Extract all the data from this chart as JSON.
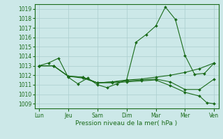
{
  "title": "Pression niveau de la mer( hPa )",
  "bg_color": "#cce8e8",
  "grid_color": "#aacece",
  "line_color": "#1a6b1a",
  "marker_color": "#1a6b1a",
  "ylim": [
    1008.5,
    1019.5
  ],
  "yticks": [
    1009,
    1010,
    1011,
    1012,
    1013,
    1014,
    1015,
    1016,
    1017,
    1018,
    1019
  ],
  "xlabels": [
    "Lun",
    "Jeu",
    "Sam",
    "Dim",
    "Mar",
    "Mer",
    "Ven"
  ],
  "xtick_pos": [
    0,
    1,
    2,
    3,
    4,
    5,
    6
  ],
  "xlim": [
    -0.15,
    6.15
  ],
  "lines": [
    {
      "x": [
        0.0,
        0.33,
        0.67,
        1.0,
        1.33,
        1.67,
        2.0,
        2.33,
        2.67,
        3.0,
        3.33,
        3.67,
        4.0,
        4.33,
        4.67,
        5.0,
        5.33,
        5.67,
        6.0
      ],
      "y": [
        1013.0,
        1013.3,
        1013.8,
        1011.8,
        1011.1,
        1011.7,
        1011.0,
        1010.7,
        1011.1,
        1011.5,
        1015.5,
        1016.3,
        1017.2,
        1019.2,
        1017.9,
        1014.1,
        1012.1,
        1012.2,
        1013.3
      ]
    },
    {
      "x": [
        0.0,
        0.5,
        1.0,
        1.5,
        2.0,
        2.5,
        3.0,
        3.5,
        4.0,
        4.5,
        5.0,
        5.5,
        6.0
      ],
      "y": [
        1013.0,
        1013.0,
        1011.9,
        1011.7,
        1011.2,
        1011.3,
        1011.5,
        1011.6,
        1011.8,
        1012.0,
        1012.3,
        1012.7,
        1013.3
      ]
    },
    {
      "x": [
        0.0,
        0.5,
        1.0,
        1.5,
        2.0,
        2.5,
        3.0,
        3.5,
        4.0,
        4.5,
        5.0,
        5.5,
        5.75,
        6.0
      ],
      "y": [
        1013.0,
        1013.0,
        1011.9,
        1011.8,
        1011.2,
        1011.2,
        1011.3,
        1011.4,
        1011.5,
        1010.9,
        1010.2,
        1009.8,
        1009.1,
        1009.0
      ]
    },
    {
      "x": [
        0.0,
        0.5,
        1.0,
        1.5,
        2.0,
        2.5,
        3.0,
        3.5,
        4.0,
        4.5,
        5.0,
        5.5,
        6.0
      ],
      "y": [
        1013.0,
        1013.0,
        1011.9,
        1011.8,
        1011.2,
        1011.3,
        1011.4,
        1011.5,
        1011.6,
        1011.3,
        1010.5,
        1010.5,
        1011.6
      ]
    }
  ],
  "tick_fontsize": 5.5,
  "label_fontsize": 6.5,
  "linewidth": 0.8,
  "markersize": 2.0
}
